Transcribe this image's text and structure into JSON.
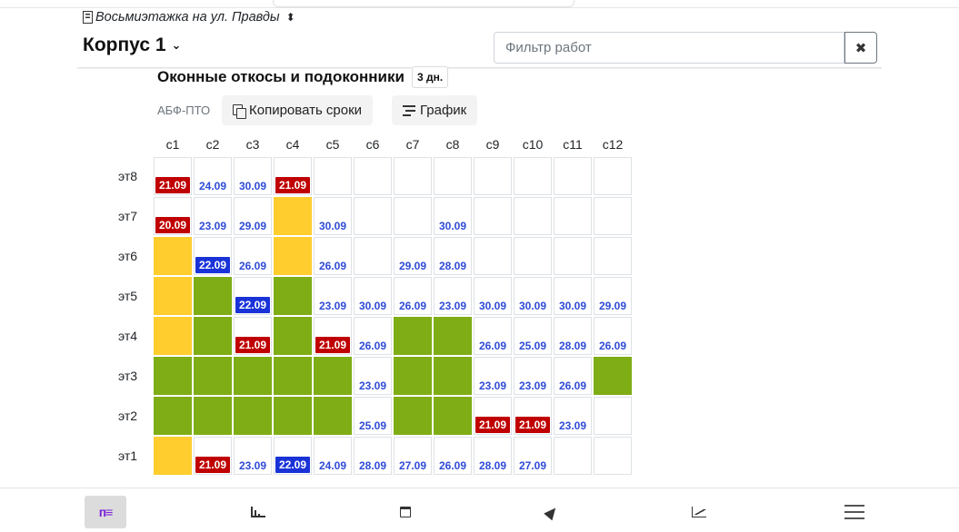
{
  "header": {
    "project": "Восьмиэтажка на ул. Правды",
    "project_sort_icon": "sort-updown-icon",
    "building": "Корпус 1",
    "filter_placeholder": "Фильтр работ",
    "clear_icon": "close-icon"
  },
  "work": {
    "title": "Оконные откосы и подоконники",
    "duration": "3 дн.",
    "org": "АБФ-ПТО",
    "copy_label": "Копировать сроки",
    "gantt_label": "График"
  },
  "colors": {
    "green": "#7fad16",
    "yellow": "#ffcd2e",
    "red": "#c00000",
    "blue_badge": "#1a33d8",
    "blue_text": "#2e4bd6"
  },
  "grid": {
    "columns": [
      "с1",
      "с2",
      "с3",
      "с4",
      "с5",
      "с6",
      "с7",
      "с8",
      "с9",
      "с10",
      "с11",
      "с12"
    ],
    "rows": [
      {
        "label": "эт8",
        "cells": [
          {
            "s": "",
            "d": "21.09",
            "b": "red"
          },
          {
            "s": "",
            "d": "24.09",
            "b": ""
          },
          {
            "s": "",
            "d": "30.09",
            "b": ""
          },
          {
            "s": "",
            "d": "21.09",
            "b": "red"
          },
          {
            "s": "",
            "d": "",
            "b": ""
          },
          {
            "s": "",
            "d": "",
            "b": ""
          },
          {
            "s": "",
            "d": "",
            "b": ""
          },
          {
            "s": "",
            "d": "",
            "b": ""
          },
          {
            "s": "",
            "d": "",
            "b": ""
          },
          {
            "s": "",
            "d": "",
            "b": ""
          },
          {
            "s": "",
            "d": "",
            "b": ""
          },
          {
            "s": "",
            "d": "",
            "b": ""
          }
        ]
      },
      {
        "label": "эт7",
        "cells": [
          {
            "s": "",
            "d": "20.09",
            "b": "red"
          },
          {
            "s": "",
            "d": "23.09",
            "b": ""
          },
          {
            "s": "",
            "d": "29.09",
            "b": ""
          },
          {
            "s": "yellow",
            "d": "",
            "b": ""
          },
          {
            "s": "",
            "d": "30.09",
            "b": ""
          },
          {
            "s": "",
            "d": "",
            "b": ""
          },
          {
            "s": "",
            "d": "",
            "b": ""
          },
          {
            "s": "",
            "d": "30.09",
            "b": ""
          },
          {
            "s": "",
            "d": "",
            "b": ""
          },
          {
            "s": "",
            "d": "",
            "b": ""
          },
          {
            "s": "",
            "d": "",
            "b": ""
          },
          {
            "s": "",
            "d": "",
            "b": ""
          }
        ]
      },
      {
        "label": "эт6",
        "cells": [
          {
            "s": "yellow",
            "d": "",
            "b": ""
          },
          {
            "s": "",
            "d": "22.09",
            "b": "blue"
          },
          {
            "s": "",
            "d": "26.09",
            "b": ""
          },
          {
            "s": "yellow",
            "d": "",
            "b": ""
          },
          {
            "s": "",
            "d": "26.09",
            "b": ""
          },
          {
            "s": "",
            "d": "",
            "b": ""
          },
          {
            "s": "",
            "d": "29.09",
            "b": ""
          },
          {
            "s": "",
            "d": "28.09",
            "b": ""
          },
          {
            "s": "",
            "d": "",
            "b": ""
          },
          {
            "s": "",
            "d": "",
            "b": ""
          },
          {
            "s": "",
            "d": "",
            "b": ""
          },
          {
            "s": "",
            "d": "",
            "b": ""
          }
        ]
      },
      {
        "label": "эт5",
        "cells": [
          {
            "s": "yellow",
            "d": "",
            "b": ""
          },
          {
            "s": "green",
            "d": "",
            "b": ""
          },
          {
            "s": "",
            "d": "22.09",
            "b": "blue"
          },
          {
            "s": "green",
            "d": "",
            "b": ""
          },
          {
            "s": "",
            "d": "23.09",
            "b": ""
          },
          {
            "s": "",
            "d": "30.09",
            "b": ""
          },
          {
            "s": "",
            "d": "26.09",
            "b": ""
          },
          {
            "s": "",
            "d": "23.09",
            "b": ""
          },
          {
            "s": "",
            "d": "30.09",
            "b": ""
          },
          {
            "s": "",
            "d": "30.09",
            "b": ""
          },
          {
            "s": "",
            "d": "30.09",
            "b": ""
          },
          {
            "s": "",
            "d": "29.09",
            "b": ""
          }
        ]
      },
      {
        "label": "эт4",
        "cells": [
          {
            "s": "yellow",
            "d": "",
            "b": ""
          },
          {
            "s": "green",
            "d": "",
            "b": ""
          },
          {
            "s": "",
            "d": "21.09",
            "b": "red"
          },
          {
            "s": "green",
            "d": "",
            "b": ""
          },
          {
            "s": "",
            "d": "21.09",
            "b": "red"
          },
          {
            "s": "",
            "d": "26.09",
            "b": ""
          },
          {
            "s": "green",
            "d": "",
            "b": ""
          },
          {
            "s": "green",
            "d": "",
            "b": ""
          },
          {
            "s": "",
            "d": "26.09",
            "b": ""
          },
          {
            "s": "",
            "d": "25.09",
            "b": ""
          },
          {
            "s": "",
            "d": "28.09",
            "b": ""
          },
          {
            "s": "",
            "d": "26.09",
            "b": ""
          }
        ]
      },
      {
        "label": "эт3",
        "cells": [
          {
            "s": "green",
            "d": "",
            "b": ""
          },
          {
            "s": "green",
            "d": "",
            "b": ""
          },
          {
            "s": "green",
            "d": "",
            "b": ""
          },
          {
            "s": "green",
            "d": "",
            "b": ""
          },
          {
            "s": "green",
            "d": "",
            "b": ""
          },
          {
            "s": "",
            "d": "23.09",
            "b": ""
          },
          {
            "s": "green",
            "d": "",
            "b": ""
          },
          {
            "s": "green",
            "d": "",
            "b": ""
          },
          {
            "s": "",
            "d": "23.09",
            "b": ""
          },
          {
            "s": "",
            "d": "23.09",
            "b": ""
          },
          {
            "s": "",
            "d": "26.09",
            "b": ""
          },
          {
            "s": "green",
            "d": "",
            "b": ""
          }
        ]
      },
      {
        "label": "эт2",
        "cells": [
          {
            "s": "green",
            "d": "",
            "b": ""
          },
          {
            "s": "green",
            "d": "",
            "b": ""
          },
          {
            "s": "green",
            "d": "",
            "b": ""
          },
          {
            "s": "green",
            "d": "",
            "b": ""
          },
          {
            "s": "green",
            "d": "",
            "b": ""
          },
          {
            "s": "",
            "d": "25.09",
            "b": ""
          },
          {
            "s": "green",
            "d": "",
            "b": ""
          },
          {
            "s": "green",
            "d": "",
            "b": ""
          },
          {
            "s": "",
            "d": "21.09",
            "b": "red"
          },
          {
            "s": "",
            "d": "21.09",
            "b": "red"
          },
          {
            "s": "",
            "d": "23.09",
            "b": ""
          },
          {
            "s": "",
            "d": "",
            "b": ""
          }
        ]
      },
      {
        "label": "эт1",
        "cells": [
          {
            "s": "yellow",
            "d": "",
            "b": ""
          },
          {
            "s": "",
            "d": "21.09",
            "b": "red"
          },
          {
            "s": "",
            "d": "23.09",
            "b": ""
          },
          {
            "s": "",
            "d": "22.09",
            "b": "blue"
          },
          {
            "s": "",
            "d": "24.09",
            "b": ""
          },
          {
            "s": "",
            "d": "28.09",
            "b": ""
          },
          {
            "s": "",
            "d": "27.09",
            "b": ""
          },
          {
            "s": "",
            "d": "26.09",
            "b": ""
          },
          {
            "s": "",
            "d": "28.09",
            "b": ""
          },
          {
            "s": "",
            "d": "27.09",
            "b": ""
          },
          {
            "s": "",
            "d": "",
            "b": ""
          },
          {
            "s": "",
            "d": "",
            "b": ""
          }
        ]
      }
    ]
  },
  "bottom_nav": [
    {
      "name": "nav-logo",
      "icon": "app-logo-icon",
      "glyph": "п≡",
      "active": true
    },
    {
      "name": "nav-stats",
      "icon": "bar-chart-icon",
      "active": false
    },
    {
      "name": "nav-calendar",
      "icon": "calendar-icon",
      "active": false
    },
    {
      "name": "nav-location",
      "icon": "location-arrow-icon",
      "active": false
    },
    {
      "name": "nav-trends",
      "icon": "line-chart-icon",
      "active": false
    },
    {
      "name": "nav-menu",
      "icon": "hamburger-menu-icon",
      "active": false
    }
  ]
}
